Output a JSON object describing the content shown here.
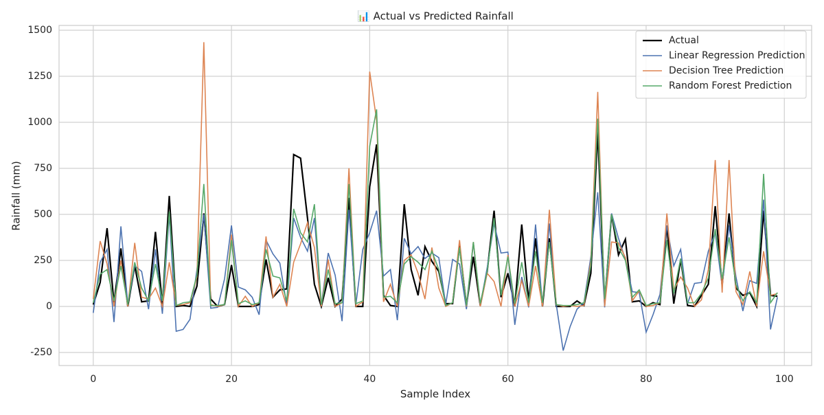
{
  "chart_data": {
    "type": "line",
    "title": "📊 Actual vs Predicted Rainfall",
    "x_label": "Sample Index",
    "y_label": "Rainfall (mm)",
    "x": [
      0,
      1,
      2,
      3,
      4,
      5,
      6,
      7,
      8,
      9,
      10,
      11,
      12,
      13,
      14,
      15,
      16,
      17,
      18,
      19,
      20,
      21,
      22,
      23,
      24,
      25,
      26,
      27,
      28,
      29,
      30,
      31,
      32,
      33,
      34,
      35,
      36,
      37,
      38,
      39,
      40,
      41,
      42,
      43,
      44,
      45,
      46,
      47,
      48,
      49,
      50,
      51,
      52,
      53,
      54,
      55,
      56,
      57,
      58,
      59,
      60,
      61,
      62,
      63,
      64,
      65,
      66,
      67,
      68,
      69,
      70,
      71,
      72,
      73,
      74,
      75,
      76,
      77,
      78,
      79,
      80,
      81,
      82,
      83,
      84,
      85,
      86,
      87,
      88,
      89,
      90,
      91,
      92,
      93,
      94,
      95,
      96,
      97,
      98,
      99
    ],
    "series": [
      {
        "name": "Actual",
        "color": "#000000",
        "values": [
          10,
          130,
          425,
          20,
          315,
          0,
          220,
          25,
          30,
          405,
          10,
          600,
          0,
          5,
          0,
          110,
          505,
          40,
          0,
          10,
          225,
          0,
          0,
          0,
          10,
          255,
          50,
          90,
          95,
          825,
          805,
          480,
          120,
          0,
          155,
          0,
          40,
          590,
          0,
          0,
          650,
          880,
          60,
          5,
          0,
          555,
          200,
          60,
          325,
          245,
          190,
          15,
          15,
          330,
          5,
          270,
          5,
          190,
          520,
          50,
          180,
          0,
          445,
          30,
          370,
          0,
          370,
          0,
          0,
          0,
          30,
          5,
          180,
          950,
          20,
          500,
          280,
          365,
          25,
          30,
          0,
          20,
          10,
          440,
          15,
          255,
          5,
          0,
          60,
          120,
          545,
          115,
          505,
          100,
          60,
          75,
          0,
          520,
          60,
          55
        ]
      },
      {
        "name": "Linear Regression Prediction",
        "color": "#4c72b0",
        "values": [
          -35,
          240,
          310,
          -85,
          435,
          10,
          220,
          190,
          -15,
          310,
          -40,
          500,
          -135,
          -125,
          -70,
          200,
          500,
          -10,
          -5,
          150,
          440,
          105,
          90,
          50,
          -45,
          360,
          285,
          235,
          5,
          480,
          375,
          300,
          480,
          5,
          290,
          170,
          -80,
          525,
          10,
          310,
          400,
          520,
          165,
          200,
          -75,
          370,
          285,
          325,
          260,
          290,
          265,
          10,
          255,
          230,
          -15,
          345,
          5,
          210,
          450,
          290,
          295,
          -100,
          160,
          -5,
          445,
          10,
          450,
          10,
          -240,
          -110,
          -15,
          20,
          270,
          620,
          -5,
          505,
          370,
          255,
          80,
          75,
          -140,
          -45,
          65,
          440,
          220,
          310,
          15,
          125,
          130,
          300,
          400,
          110,
          440,
          160,
          -25,
          140,
          125,
          580,
          -125,
          50
        ]
      },
      {
        "name": "Decision Tree Prediction",
        "color": "#dd8452",
        "values": [
          40,
          355,
          230,
          0,
          250,
          0,
          345,
          50,
          40,
          100,
          0,
          240,
          5,
          10,
          20,
          160,
          1435,
          10,
          0,
          10,
          390,
          0,
          55,
          0,
          20,
          380,
          50,
          120,
          0,
          240,
          340,
          455,
          320,
          0,
          255,
          0,
          20,
          750,
          0,
          25,
          1275,
          1010,
          25,
          120,
          0,
          250,
          280,
          180,
          40,
          320,
          100,
          0,
          20,
          360,
          0,
          350,
          0,
          180,
          135,
          0,
          280,
          0,
          140,
          0,
          220,
          0,
          525,
          10,
          0,
          5,
          0,
          5,
          245,
          1165,
          0,
          350,
          345,
          265,
          30,
          85,
          0,
          5,
          20,
          505,
          90,
          160,
          100,
          0,
          35,
          200,
          795,
          75,
          795,
          80,
          10,
          190,
          0,
          300,
          60,
          70
        ]
      },
      {
        "name": "Random Forest Prediction",
        "color": "#55a868",
        "values": [
          20,
          175,
          200,
          30,
          220,
          10,
          240,
          100,
          30,
          230,
          30,
          515,
          5,
          20,
          25,
          170,
          665,
          5,
          5,
          10,
          360,
          15,
          30,
          10,
          20,
          310,
          165,
          155,
          30,
          530,
          400,
          350,
          555,
          10,
          200,
          15,
          20,
          665,
          15,
          30,
          870,
          1070,
          50,
          55,
          20,
          230,
          270,
          240,
          200,
          300,
          200,
          5,
          20,
          320,
          5,
          350,
          15,
          190,
          480,
          60,
          270,
          15,
          240,
          20,
          300,
          20,
          350,
          10,
          5,
          5,
          10,
          20,
          220,
          1020,
          40,
          500,
          320,
          250,
          50,
          90,
          5,
          15,
          20,
          360,
          70,
          260,
          20,
          20,
          70,
          155,
          420,
          150,
          375,
          120,
          30,
          80,
          20,
          720,
          20,
          75
        ]
      }
    ],
    "xlim": [
      -4.95,
      103.95
    ],
    "ylim": [
      -321,
      1526
    ],
    "xticks": [
      0,
      20,
      40,
      60,
      80,
      100
    ],
    "yticks": [
      -250,
      0,
      250,
      500,
      750,
      1000,
      1250,
      1500
    ],
    "grid": true,
    "legend": "upper right"
  }
}
